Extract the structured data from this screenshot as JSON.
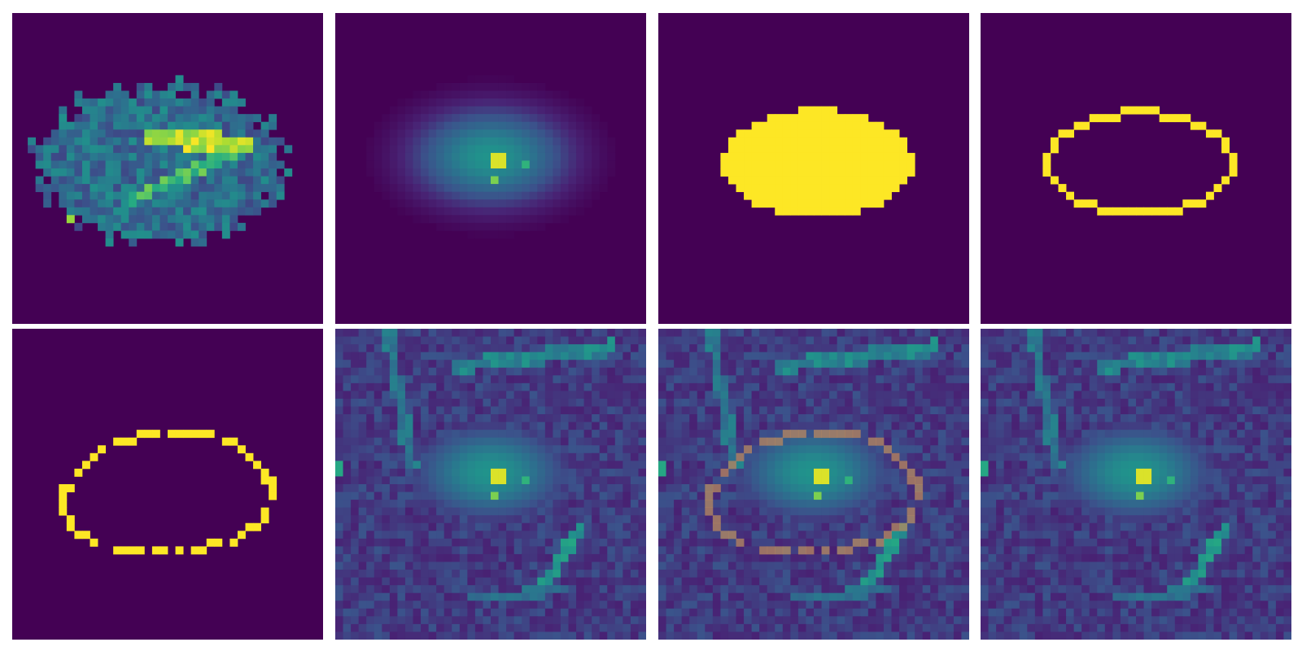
{
  "figure": {
    "colormap": "viridis",
    "colors": {
      "background": "#ffffff",
      "viridis_0": "#440154",
      "viridis_25": "#3b528b",
      "viridis_50": "#21918c",
      "viridis_75": "#5ec962",
      "viridis_100": "#fde725",
      "overlay_contour": "#b88a5f"
    },
    "panels": [
      {
        "id": "raw-image",
        "kind": "heatmap-texture",
        "row": 1,
        "col": 1
      },
      {
        "id": "smoothed-image",
        "kind": "heatmap-blob",
        "row": 1,
        "col": 2
      },
      {
        "id": "binary-mask",
        "kind": "mask-filled",
        "row": 1,
        "col": 3
      },
      {
        "id": "mask-boundary",
        "kind": "mask-contour",
        "row": 1,
        "col": 4
      },
      {
        "id": "dotted-boundary",
        "kind": "mask-contour-dotted",
        "row": 2,
        "col": 1
      },
      {
        "id": "background-image",
        "kind": "heatmap-scene",
        "row": 2,
        "col": 2
      },
      {
        "id": "overlay-image",
        "kind": "heatmap-scene-with-contour",
        "row": 2,
        "col": 3
      },
      {
        "id": "result-image",
        "kind": "heatmap-scene",
        "row": 2,
        "col": 4
      }
    ]
  }
}
